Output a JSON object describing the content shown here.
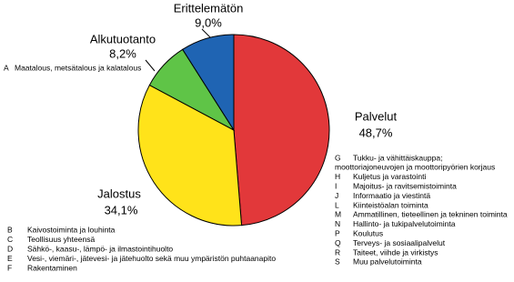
{
  "chart_data": {
    "type": "pie",
    "categories": [
      "Palvelut",
      "Jalostus",
      "Alkutuotanto",
      "Erittelemätön"
    ],
    "values": [
      48.7,
      34.1,
      8.2,
      9.0
    ],
    "value_labels": [
      "48,7%",
      "34,1%",
      "8,2%",
      "9,0%"
    ],
    "colors": [
      "#e2383a",
      "#ffe31a",
      "#5fc447",
      "#1f64b3"
    ],
    "notes": [
      [
        {
          "code": "A",
          "lines": [
            "Maatalous, metsätalous  ja kalatalous"
          ]
        }
      ],
      [
        {
          "code": "G",
          "lines": [
            "Tukku- ja vähittäiskauppa;",
            "moottoriajoneuvojen ja moottoripyörien korjaus"
          ]
        },
        {
          "code": "H",
          "lines": [
            "Kuljetus ja varastointi"
          ]
        },
        {
          "code": "I",
          "lines": [
            "Majoitus- ja ravitsemistoiminta"
          ]
        },
        {
          "code": "J",
          "lines": [
            "Informaatio ja viestintä"
          ]
        },
        {
          "code": "L",
          "lines": [
            "Kiinteistöalan toiminta"
          ]
        },
        {
          "code": "M",
          "lines": [
            "Ammatillinen, tieteellinen ja tekninen toiminta"
          ]
        },
        {
          "code": "N",
          "lines": [
            "Hallinto- ja tukipalvelutoiminta"
          ]
        },
        {
          "code": "P",
          "lines": [
            "Koulutus"
          ]
        },
        {
          "code": "Q",
          "lines": [
            "Terveys- ja sosiaalipalvelut"
          ]
        },
        {
          "code": "R",
          "lines": [
            "Taiteet, viihde ja virkistys"
          ]
        },
        {
          "code": "S",
          "lines": [
            "Muu palvelutoiminta"
          ]
        }
      ],
      [
        {
          "code": "B",
          "lines": [
            "Kaivostoiminta ja louhinta"
          ]
        },
        {
          "code": "C",
          "lines": [
            "Teollisuus yhteensä"
          ]
        },
        {
          "code": "D",
          "lines": [
            "Sähkö-, kaasu-, lämpö- ja ilmastointihuolto"
          ]
        },
        {
          "code": "E",
          "lines": [
            "Vesi-, viemäri-, jätevesi- ja  jätehuolto sekä muu ympäristön puhtaanapito"
          ]
        },
        {
          "code": "F",
          "lines": [
            "Rakentaminen"
          ]
        }
      ]
    ]
  }
}
